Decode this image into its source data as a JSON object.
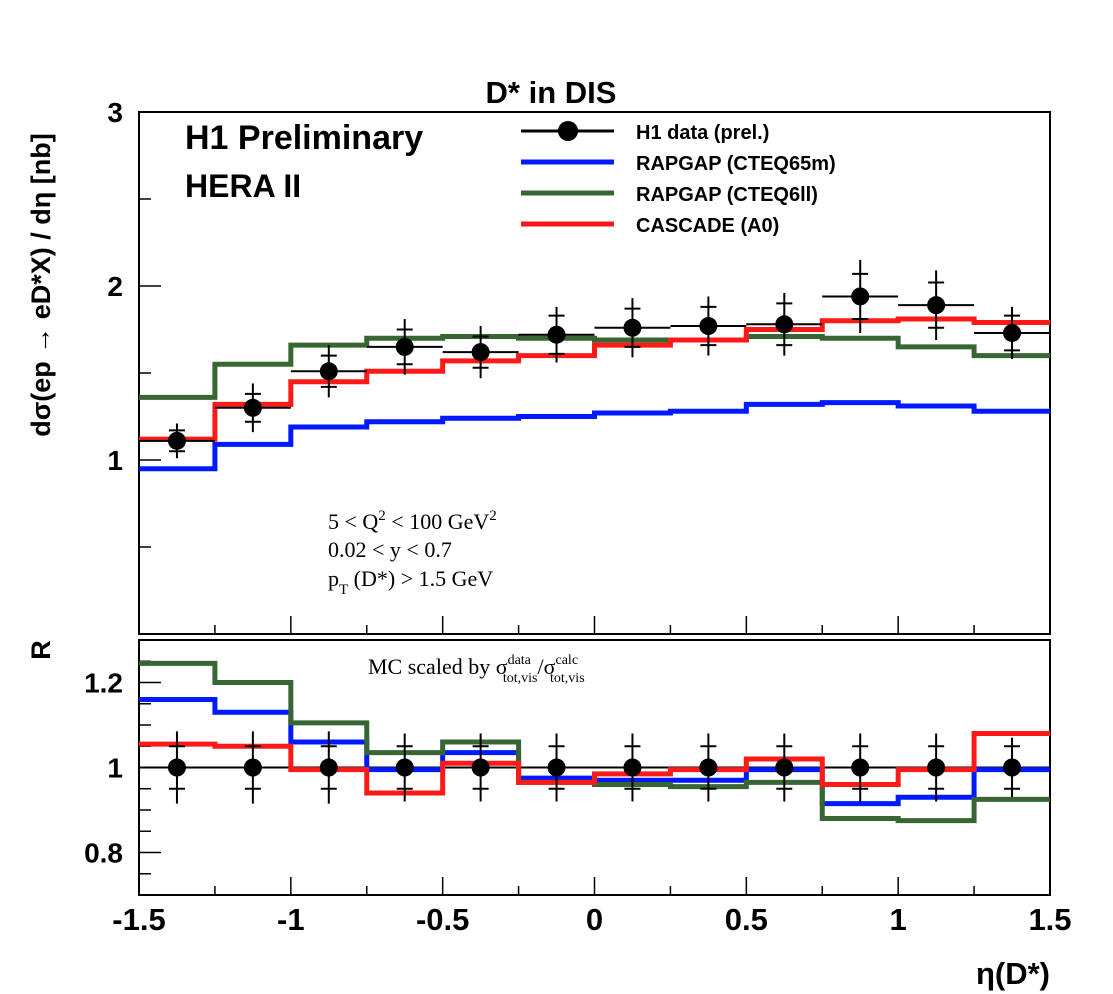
{
  "colors": {
    "data": "#000000",
    "rapgap_cteq65m": "#0019ff",
    "rapgap_cteq6ll": "#386633",
    "cascade_a0": "#ff1a1a"
  },
  "chart_data": [
    {
      "type": "line",
      "panel": "main",
      "title": "D* in DIS",
      "ylabel": "dσ(ep → eD*X) / dη [nb]",
      "xlabel": "",
      "xlim": [
        -1.5,
        1.5
      ],
      "ylim": [
        0.0,
        3.0
      ],
      "yticks": [
        1,
        2,
        3
      ],
      "x_edges": [
        -1.5,
        -1.25,
        -1.0,
        -0.75,
        -0.5,
        -0.25,
        0.0,
        0.25,
        0.5,
        0.75,
        1.0,
        1.25,
        1.5
      ],
      "data_points": {
        "name": "H1 data (prel.)",
        "x": [
          -1.375,
          -1.125,
          -0.875,
          -0.625,
          -0.375,
          -0.125,
          0.125,
          0.375,
          0.625,
          0.875,
          1.125,
          1.375
        ],
        "y": [
          1.11,
          1.3,
          1.51,
          1.65,
          1.62,
          1.72,
          1.76,
          1.77,
          1.78,
          1.94,
          1.89,
          1.73
        ],
        "err_stat": [
          0.06,
          0.08,
          0.09,
          0.1,
          0.09,
          0.11,
          0.11,
          0.11,
          0.12,
          0.13,
          0.13,
          0.1
        ],
        "err_tot": [
          0.1,
          0.14,
          0.15,
          0.16,
          0.15,
          0.16,
          0.17,
          0.17,
          0.18,
          0.21,
          0.2,
          0.15
        ]
      },
      "series": [
        {
          "name": "RAPGAP (CTEQ65m)",
          "color_key": "rapgap_cteq65m",
          "values": [
            0.95,
            1.09,
            1.19,
            1.22,
            1.24,
            1.25,
            1.27,
            1.28,
            1.32,
            1.33,
            1.31,
            1.28
          ]
        },
        {
          "name": "RAPGAP (CTEQ6ll)",
          "color_key": "rapgap_cteq6ll",
          "values": [
            1.36,
            1.55,
            1.66,
            1.7,
            1.71,
            1.7,
            1.69,
            1.69,
            1.71,
            1.7,
            1.65,
            1.6
          ]
        },
        {
          "name": "CASCADE (A0)",
          "color_key": "cascade_a0",
          "values": [
            1.12,
            1.32,
            1.45,
            1.51,
            1.57,
            1.6,
            1.66,
            1.69,
            1.75,
            1.8,
            1.81,
            1.79
          ]
        }
      ],
      "texts": {
        "experiment": "H1 Preliminary",
        "period": "HERA II",
        "cut_q2_a": "5 < Q",
        "cut_q2_sup": "2",
        "cut_q2_b": " < 100 GeV",
        "cut_q2_sup2": "2",
        "cut_y": "0.02 < y < 0.7",
        "cut_pt_a": "p",
        "cut_pt_sub": "T",
        "cut_pt_b": " (D*) > 1.5 GeV"
      }
    },
    {
      "type": "line",
      "panel": "ratio",
      "ylabel": "R",
      "xlabel": "η(D*)",
      "xlim": [
        -1.5,
        1.5
      ],
      "ylim": [
        0.7,
        1.3
      ],
      "yticks": [
        0.8,
        1.0,
        1.2
      ],
      "ytick_labels": [
        "0.8",
        "1",
        "1.2"
      ],
      "xticks": [
        -1.5,
        -1.0,
        -0.5,
        0.0,
        0.5,
        1.0,
        1.5
      ],
      "xtick_labels": [
        "-1.5",
        "-1",
        "-0.5",
        "0",
        "0.5",
        "1",
        "1.5"
      ],
      "x_edges": [
        -1.5,
        -1.25,
        -1.0,
        -0.75,
        -0.5,
        -0.25,
        0.0,
        0.25,
        0.5,
        0.75,
        1.0,
        1.25,
        1.5
      ],
      "data_points": {
        "name": "H1 data (prel.)",
        "x": [
          -1.375,
          -1.125,
          -0.875,
          -0.625,
          -0.375,
          -0.125,
          0.125,
          0.375,
          0.625,
          0.875,
          1.125,
          1.375
        ],
        "y": [
          1.0,
          1.0,
          1.0,
          1.0,
          1.0,
          1.0,
          1.0,
          1.0,
          1.0,
          1.0,
          1.0,
          1.0
        ],
        "err_stat": [
          0.05,
          0.05,
          0.05,
          0.05,
          0.05,
          0.05,
          0.05,
          0.05,
          0.05,
          0.05,
          0.05,
          0.05
        ],
        "err_tot": [
          0.085,
          0.085,
          0.085,
          0.08,
          0.08,
          0.08,
          0.08,
          0.08,
          0.08,
          0.08,
          0.08,
          0.07
        ]
      },
      "series": [
        {
          "name": "RAPGAP (CTEQ65m)",
          "color_key": "rapgap_cteq65m",
          "values": [
            1.16,
            1.13,
            1.06,
            0.995,
            1.035,
            0.975,
            0.97,
            0.97,
            0.995,
            0.915,
            0.93,
            0.995
          ]
        },
        {
          "name": "RAPGAP (CTEQ6ll)",
          "color_key": "rapgap_cteq6ll",
          "values": [
            1.245,
            1.2,
            1.105,
            1.035,
            1.06,
            0.965,
            0.96,
            0.955,
            0.965,
            0.88,
            0.875,
            0.925
          ]
        },
        {
          "name": "CASCADE (A0)",
          "color_key": "cascade_a0",
          "values": [
            1.055,
            1.05,
            0.995,
            0.94,
            1.01,
            0.965,
            0.985,
            0.995,
            1.02,
            0.96,
            0.995,
            1.08
          ]
        }
      ],
      "texts": {
        "mc_note_a": "MC scaled by σ",
        "mc_note_sup1": "data",
        "mc_note_sub1": "tot,vis",
        "mc_note_b": "/σ",
        "mc_note_sup2": "calc",
        "mc_note_sub2": "tot,vis"
      }
    }
  ]
}
